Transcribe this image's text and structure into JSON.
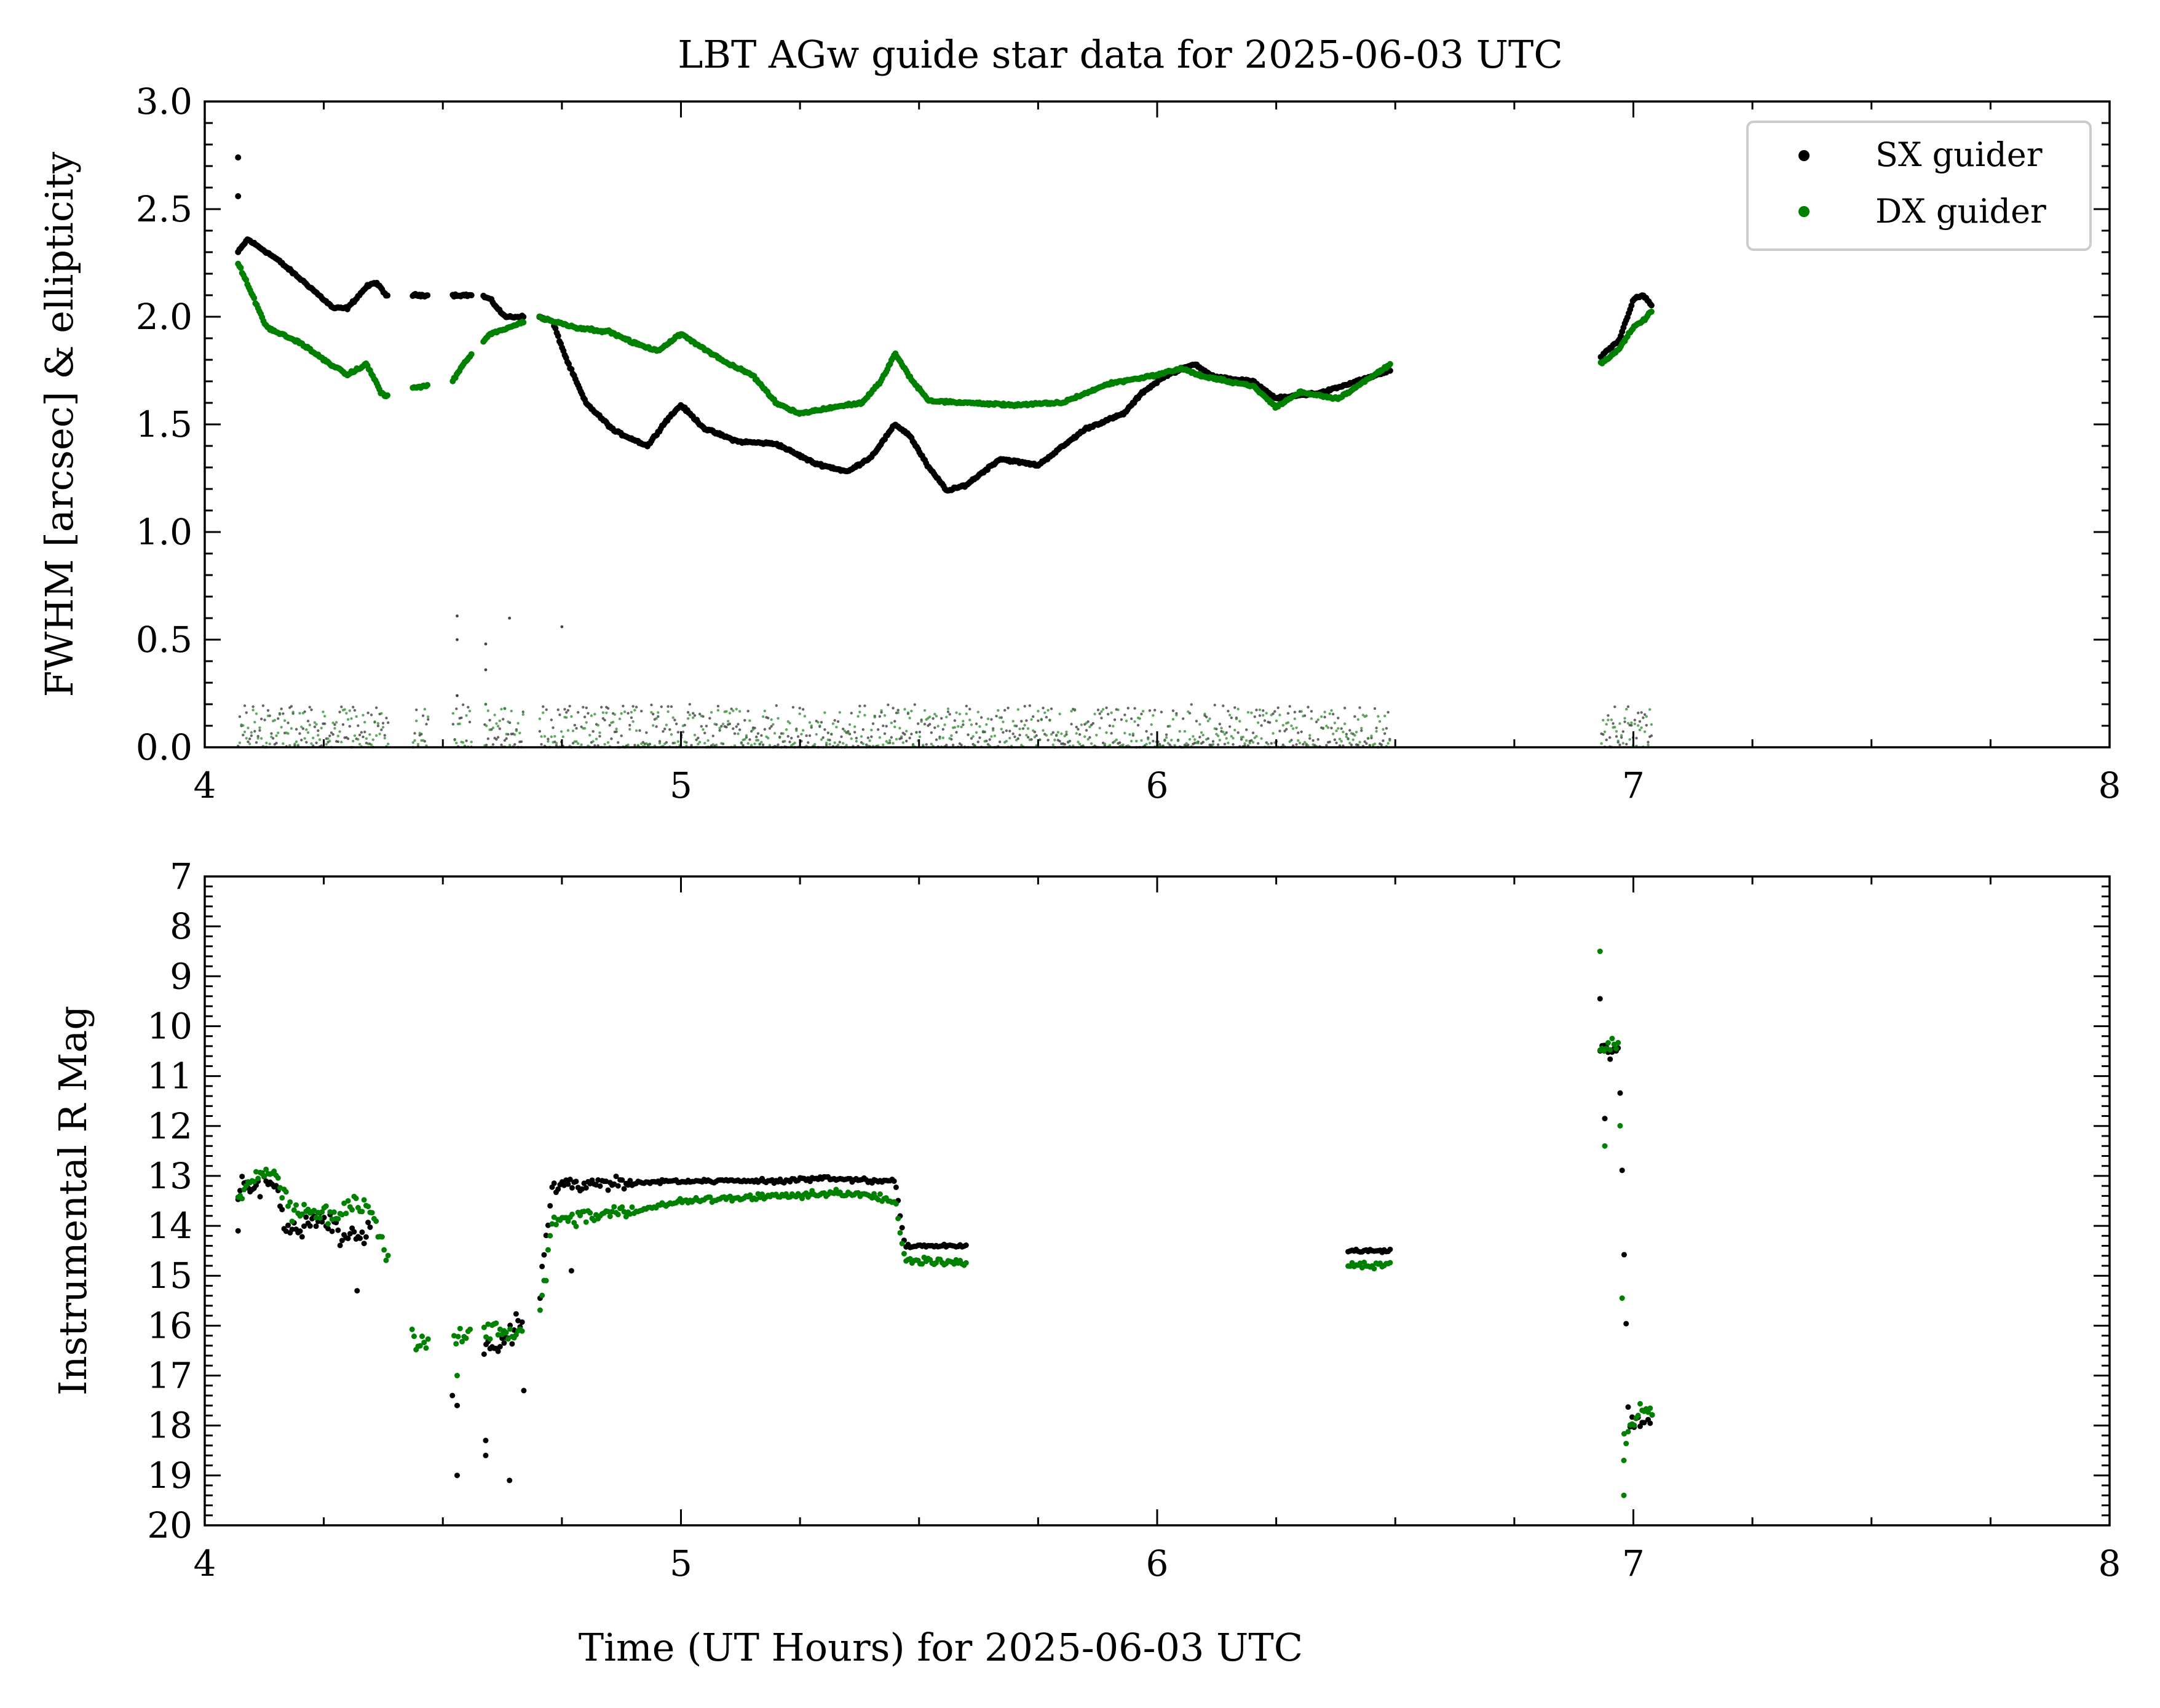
{
  "chart_data": [
    {
      "type": "scatter",
      "title": "LBT AGw guide star data for 2025-06-03 UTC",
      "xlabel": "",
      "ylabel": "FWHM [arcsec] & ellipticity",
      "xlim": [
        4,
        8
      ],
      "ylim": [
        0,
        3
      ],
      "x_ticks": [
        "4",
        "5",
        "6",
        "7",
        "8"
      ],
      "y_ticks": [
        "0.0",
        "0.5",
        "1.0",
        "1.5",
        "2.0",
        "2.5",
        "3.0"
      ],
      "grid": false,
      "legend": {
        "placement": "top-right",
        "entries": [
          "SX guider",
          "DX guider"
        ]
      },
      "series": [
        {
          "name": "SX guider",
          "color": "#000000",
          "fwhm_trend": [
            [
              4.07,
              2.3
            ],
            [
              4.09,
              2.36
            ],
            [
              4.15,
              2.27
            ],
            [
              4.22,
              2.14
            ],
            [
              4.27,
              2.04
            ],
            [
              4.3,
              2.04
            ],
            [
              4.34,
              2.14
            ],
            [
              4.36,
              2.16
            ],
            [
              4.38,
              2.1
            ],
            [
              4.45,
              2.1
            ],
            [
              4.52,
              2.1
            ],
            [
              4.58,
              2.1
            ],
            [
              4.6,
              2.08
            ],
            [
              4.63,
              2.0
            ],
            [
              4.66,
              2.0
            ],
            [
              4.7,
              2.0
            ],
            [
              4.73,
              1.98
            ],
            [
              4.76,
              1.8
            ],
            [
              4.8,
              1.6
            ],
            [
              4.86,
              1.47
            ],
            [
              4.93,
              1.4
            ],
            [
              4.97,
              1.52
            ],
            [
              5.0,
              1.59
            ],
            [
              5.05,
              1.48
            ],
            [
              5.12,
              1.42
            ],
            [
              5.2,
              1.41
            ],
            [
              5.28,
              1.32
            ],
            [
              5.35,
              1.28
            ],
            [
              5.4,
              1.35
            ],
            [
              5.45,
              1.5
            ],
            [
              5.48,
              1.45
            ],
            [
              5.52,
              1.3
            ],
            [
              5.56,
              1.19
            ],
            [
              5.6,
              1.22
            ],
            [
              5.67,
              1.34
            ],
            [
              5.75,
              1.31
            ],
            [
              5.85,
              1.48
            ],
            [
              5.93,
              1.55
            ],
            [
              5.97,
              1.65
            ],
            [
              6.02,
              1.73
            ],
            [
              6.08,
              1.78
            ],
            [
              6.12,
              1.72
            ],
            [
              6.2,
              1.7
            ],
            [
              6.25,
              1.62
            ],
            [
              6.35,
              1.65
            ],
            [
              6.42,
              1.7
            ],
            [
              6.49,
              1.75
            ],
            [
              6.93,
              1.81
            ],
            [
              6.97,
              1.89
            ],
            [
              7.0,
              2.08
            ],
            [
              7.02,
              2.1
            ],
            [
              7.04,
              2.05
            ]
          ],
          "fwhm_outliers": [
            [
              4.07,
              2.74
            ],
            [
              4.07,
              2.56
            ]
          ],
          "ellipticity_range": [
            0.0,
            0.2
          ],
          "ellipticity_outliers": [
            [
              4.53,
              0.61
            ],
            [
              4.53,
              0.5
            ],
            [
              4.53,
              0.24
            ],
            [
              4.59,
              0.36
            ],
            [
              4.64,
              0.6
            ],
            [
              4.75,
              0.56
            ],
            [
              4.59,
              0.48
            ]
          ],
          "rmag_trend": [
            [
              4.07,
              13.3
            ],
            [
              4.1,
              13.2
            ],
            [
              4.14,
              13.1
            ],
            [
              4.17,
              14.0
            ],
            [
              4.2,
              14.2
            ],
            [
              4.25,
              13.9
            ],
            [
              4.3,
              14.3
            ],
            [
              4.35,
              14.1
            ],
            [
              4.57,
              16.4
            ],
            [
              4.6,
              16.5
            ],
            [
              4.63,
              16.3
            ],
            [
              4.66,
              15.9
            ],
            [
              4.7,
              15.6
            ],
            [
              4.73,
              13.2
            ],
            [
              4.8,
              13.2
            ],
            [
              4.9,
              13.15
            ],
            [
              5.0,
              13.1
            ],
            [
              5.1,
              13.1
            ],
            [
              5.2,
              13.1
            ],
            [
              5.3,
              13.05
            ],
            [
              5.4,
              13.1
            ],
            [
              5.45,
              13.1
            ],
            [
              5.47,
              14.4
            ],
            [
              5.6,
              14.4
            ],
            [
              5.8,
              14.45
            ],
            [
              6.0,
              14.5
            ],
            [
              6.2,
              14.5
            ],
            [
              6.4,
              14.5
            ],
            [
              6.49,
              14.5
            ],
            [
              6.93,
              10.4
            ],
            [
              6.97,
              10.5
            ],
            [
              6.99,
              17.9
            ],
            [
              7.01,
              17.9
            ],
            [
              7.04,
              17.85
            ]
          ],
          "rmag_outliers": [
            [
              4.52,
              17.4
            ],
            [
              4.53,
              17.6
            ],
            [
              4.53,
              19.0
            ],
            [
              4.59,
              18.3
            ],
            [
              4.59,
              18.6
            ],
            [
              4.64,
              19.1
            ],
            [
              4.67,
              17.3
            ],
            [
              4.77,
              14.9
            ],
            [
              4.32,
              15.3
            ],
            [
              4.07,
              14.1
            ],
            [
              6.93,
              9.45
            ],
            [
              6.94,
              11.85
            ]
          ]
        },
        {
          "name": "DX guider",
          "color": "#008000",
          "fwhm_trend": [
            [
              4.07,
              2.25
            ],
            [
              4.1,
              2.1
            ],
            [
              4.13,
              1.95
            ],
            [
              4.2,
              1.88
            ],
            [
              4.25,
              1.8
            ],
            [
              4.3,
              1.73
            ],
            [
              4.34,
              1.78
            ],
            [
              4.37,
              1.65
            ],
            [
              4.38,
              1.63
            ],
            [
              4.44,
              1.67
            ],
            [
              4.52,
              1.7
            ],
            [
              4.55,
              1.8
            ],
            [
              4.6,
              1.92
            ],
            [
              4.65,
              1.96
            ],
            [
              4.7,
              2.0
            ],
            [
              4.73,
              1.98
            ],
            [
              4.78,
              1.95
            ],
            [
              4.85,
              1.93
            ],
            [
              4.9,
              1.88
            ],
            [
              4.95,
              1.84
            ],
            [
              5.0,
              1.92
            ],
            [
              5.05,
              1.85
            ],
            [
              5.1,
              1.78
            ],
            [
              5.15,
              1.73
            ],
            [
              5.2,
              1.6
            ],
            [
              5.25,
              1.55
            ],
            [
              5.32,
              1.58
            ],
            [
              5.38,
              1.6
            ],
            [
              5.42,
              1.7
            ],
            [
              5.45,
              1.83
            ],
            [
              5.48,
              1.72
            ],
            [
              5.52,
              1.61
            ],
            [
              5.6,
              1.6
            ],
            [
              5.7,
              1.59
            ],
            [
              5.8,
              1.6
            ],
            [
              5.9,
              1.69
            ],
            [
              6.0,
              1.73
            ],
            [
              6.05,
              1.76
            ],
            [
              6.1,
              1.72
            ],
            [
              6.2,
              1.68
            ],
            [
              6.25,
              1.58
            ],
            [
              6.3,
              1.65
            ],
            [
              6.38,
              1.62
            ],
            [
              6.45,
              1.72
            ],
            [
              6.49,
              1.78
            ],
            [
              6.93,
              1.78
            ],
            [
              6.97,
              1.85
            ],
            [
              7.0,
              1.95
            ],
            [
              7.02,
              1.98
            ],
            [
              7.04,
              2.03
            ]
          ],
          "fwhm_outliers": [],
          "ellipticity_range": [
            0.0,
            0.18
          ],
          "ellipticity_outliers": [
            [
              4.59,
              0.2
            ],
            [
              4.63,
              0.18
            ]
          ],
          "rmag_trend": [
            [
              4.07,
              13.4
            ],
            [
              4.1,
              13.1
            ],
            [
              4.14,
              12.85
            ],
            [
              4.18,
              13.6
            ],
            [
              4.22,
              13.7
            ],
            [
              4.26,
              13.8
            ],
            [
              4.3,
              13.6
            ],
            [
              4.35,
              13.6
            ],
            [
              4.44,
              16.3
            ],
            [
              4.53,
              16.3
            ],
            [
              4.59,
              16.0
            ],
            [
              4.63,
              16.2
            ],
            [
              4.66,
              16.2
            ],
            [
              4.7,
              16.1
            ],
            [
              4.73,
              13.9
            ],
            [
              4.8,
              13.8
            ],
            [
              4.9,
              13.7
            ],
            [
              5.0,
              13.5
            ],
            [
              5.1,
              13.45
            ],
            [
              5.2,
              13.4
            ],
            [
              5.3,
              13.35
            ],
            [
              5.4,
              13.4
            ],
            [
              5.45,
              13.5
            ],
            [
              5.47,
              14.7
            ],
            [
              5.6,
              14.75
            ],
            [
              5.8,
              14.8
            ],
            [
              6.0,
              14.85
            ],
            [
              6.2,
              14.8
            ],
            [
              6.4,
              14.8
            ],
            [
              6.49,
              14.8
            ],
            [
              6.93,
              10.4
            ],
            [
              6.97,
              10.35
            ],
            [
              6.98,
              18.3
            ],
            [
              7.01,
              17.7
            ],
            [
              7.04,
              17.7
            ]
          ],
          "rmag_outliers": [
            [
              6.93,
              8.5
            ],
            [
              6.94,
              12.4
            ],
            [
              6.98,
              19.4
            ],
            [
              6.98,
              18.7
            ],
            [
              4.53,
              17.0
            ]
          ]
        }
      ]
    },
    {
      "type": "scatter",
      "title": "",
      "xlabel": "Time (UT Hours) for 2025-06-03 UTC",
      "ylabel": "Instrumental R Mag",
      "xlim": [
        4,
        8
      ],
      "ylim": [
        20,
        7
      ],
      "y_inverted": true,
      "x_ticks": [
        "4",
        "5",
        "6",
        "7",
        "8"
      ],
      "y_ticks": [
        "7",
        "8",
        "9",
        "10",
        "11",
        "12",
        "13",
        "14",
        "15",
        "16",
        "17",
        "18",
        "19",
        "20"
      ],
      "grid": false,
      "legend": null
    }
  ]
}
